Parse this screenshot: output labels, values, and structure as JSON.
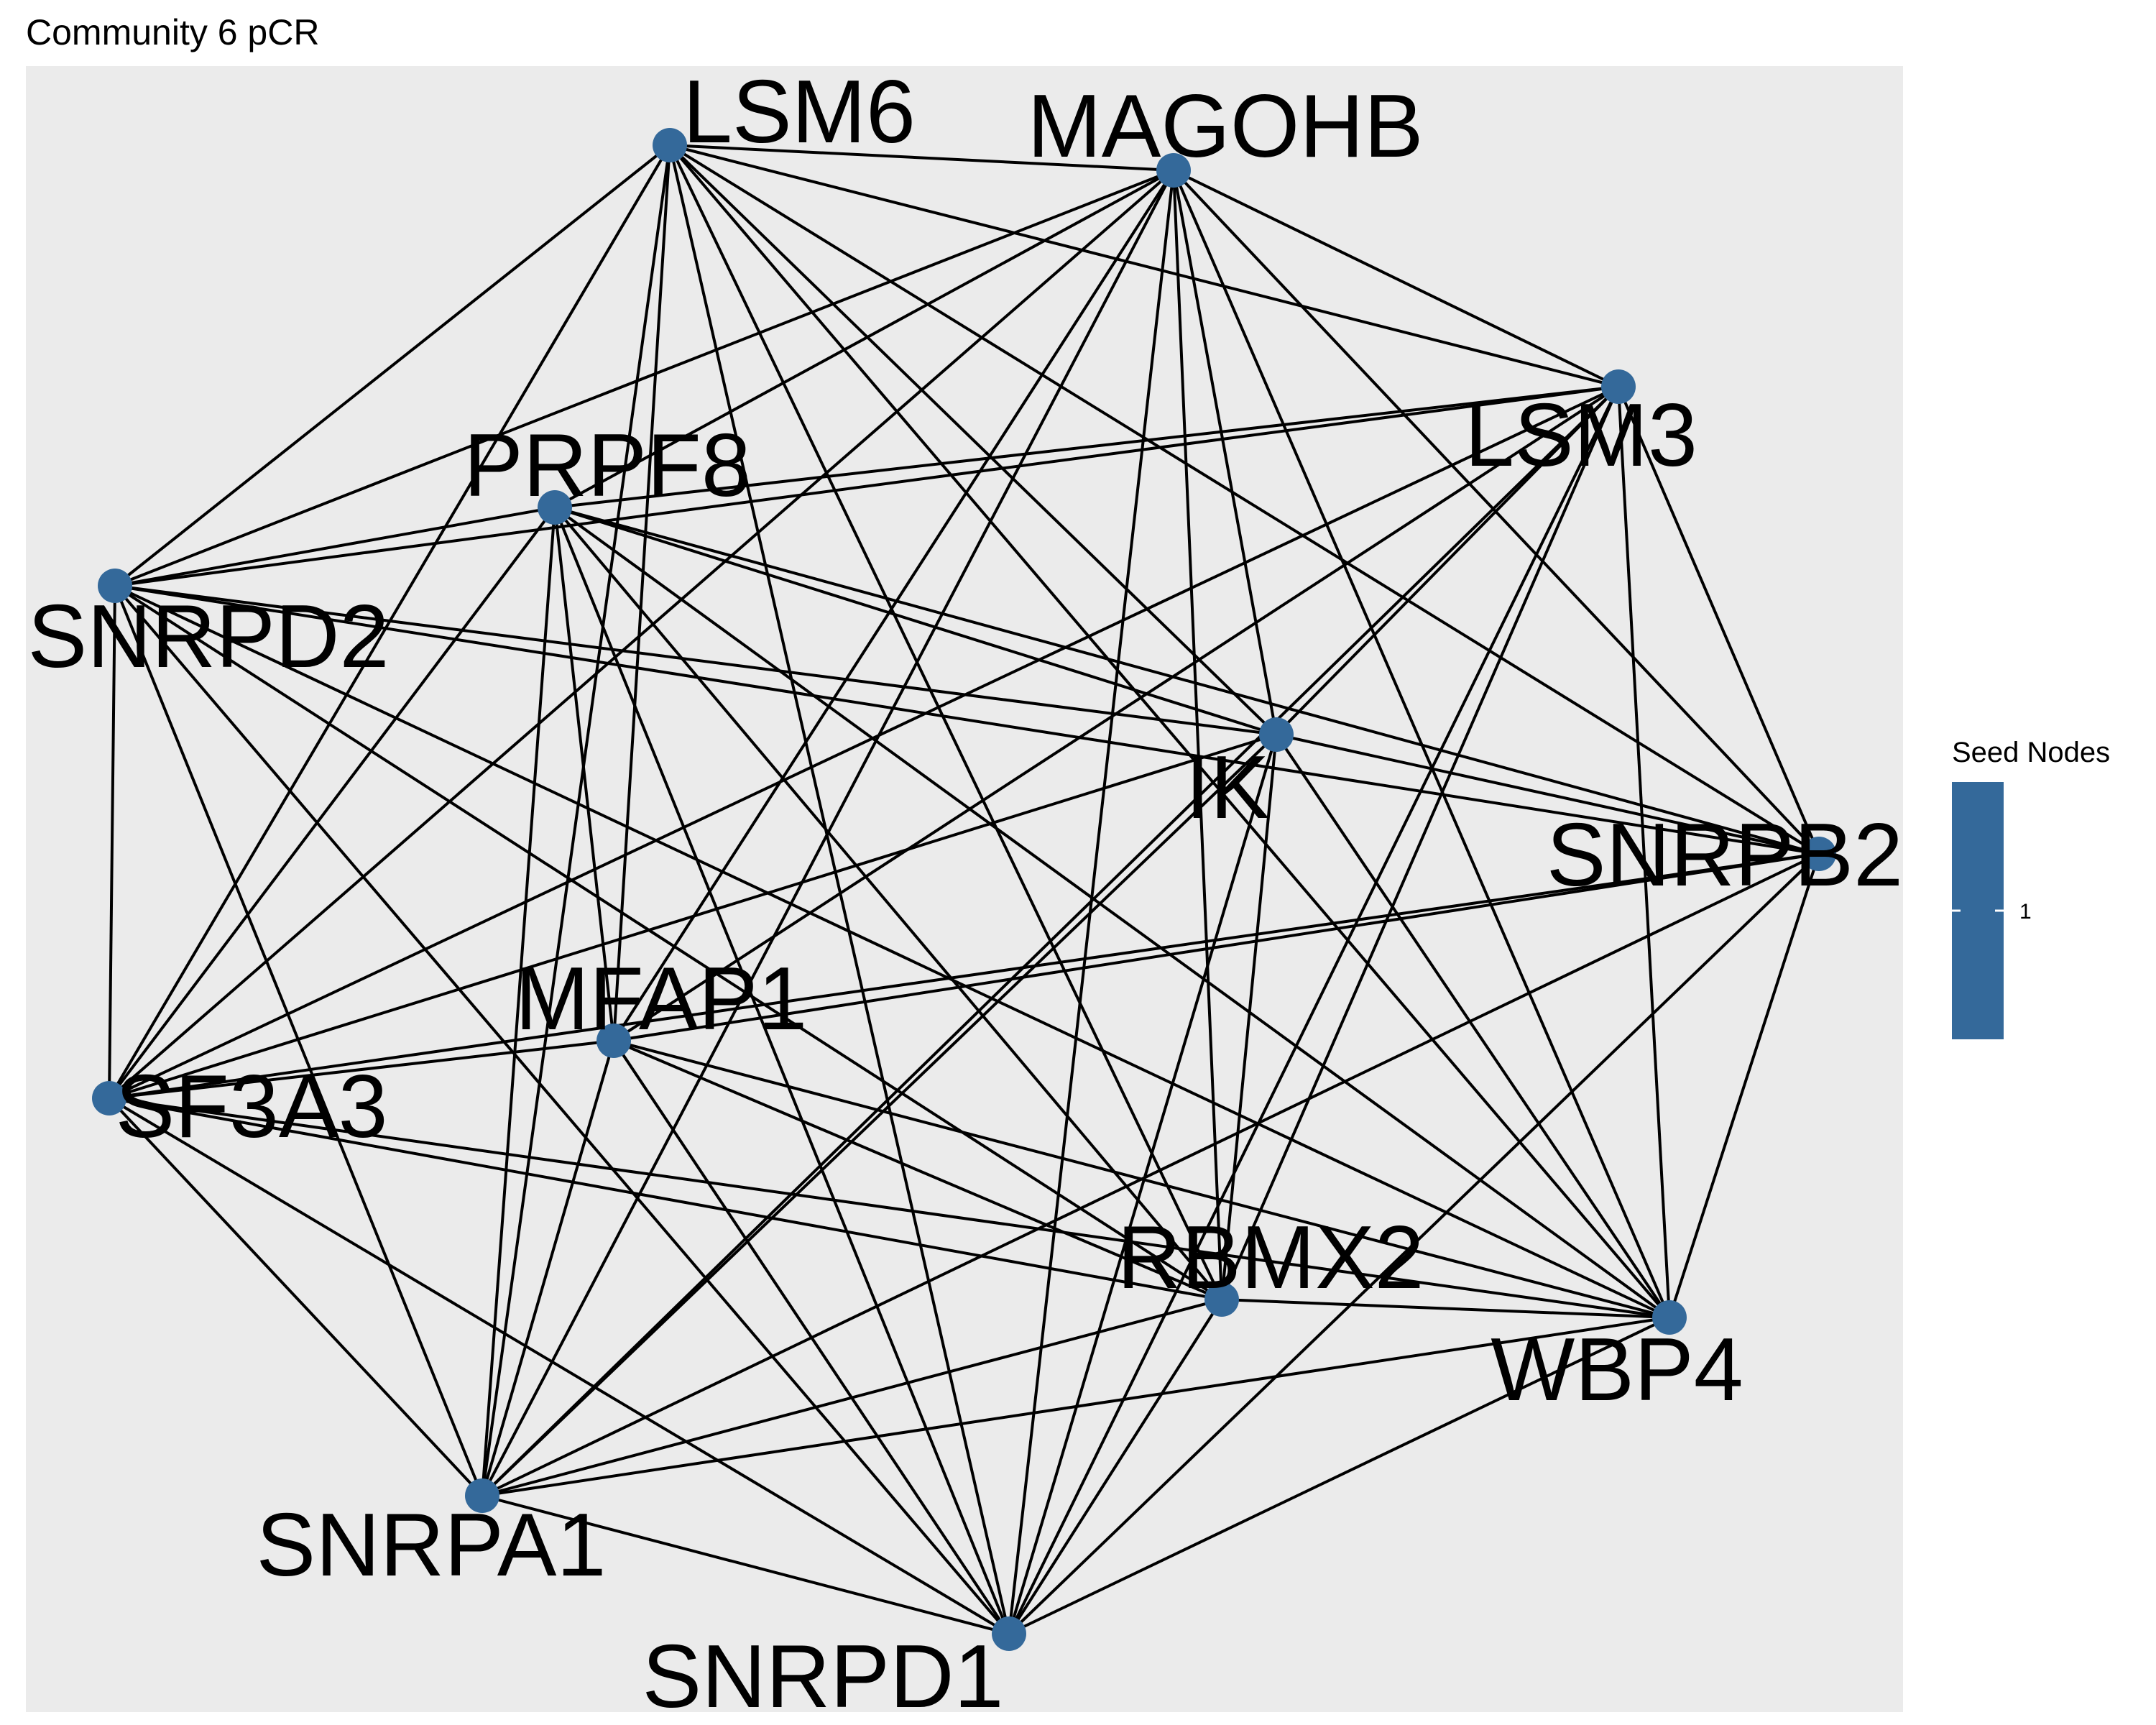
{
  "title": "Community 6 pCR",
  "node_color": "#34699a",
  "panel_color": "#ebebeb",
  "edge_color": "#000000",
  "legend": {
    "title": "Seed Nodes",
    "tick_label": "1",
    "color": "#34699a"
  },
  "nodes": [
    {
      "id": "LSM6",
      "label": "LSM6"
    },
    {
      "id": "MAGOHB",
      "label": "MAGOHB"
    },
    {
      "id": "LSM3",
      "label": "LSM3"
    },
    {
      "id": "PRPF8",
      "label": "PRPF8"
    },
    {
      "id": "SNRPD2",
      "label": "SNRPD2"
    },
    {
      "id": "IK",
      "label": "IK"
    },
    {
      "id": "SNRPB2",
      "label": "SNRPB2"
    },
    {
      "id": "MFAP1",
      "label": "MFAP1"
    },
    {
      "id": "SF3A3",
      "label": "SF3A3"
    },
    {
      "id": "RBMX2",
      "label": "RBMX2"
    },
    {
      "id": "WBP4",
      "label": "WBP4"
    },
    {
      "id": "SNRPA1",
      "label": "SNRPA1"
    },
    {
      "id": "SNRPD1",
      "label": "SNRPD1"
    }
  ],
  "edges": [
    [
      "LSM6",
      "MAGOHB"
    ],
    [
      "LSM6",
      "LSM3"
    ],
    [
      "LSM6",
      "SNRPD2"
    ],
    [
      "LSM6",
      "IK"
    ],
    [
      "LSM6",
      "SNRPB2"
    ],
    [
      "LSM6",
      "MFAP1"
    ],
    [
      "LSM6",
      "SF3A3"
    ],
    [
      "LSM6",
      "RBMX2"
    ],
    [
      "LSM6",
      "WBP4"
    ],
    [
      "LSM6",
      "SNRPA1"
    ],
    [
      "LSM6",
      "SNRPD1"
    ],
    [
      "MAGOHB",
      "LSM3"
    ],
    [
      "MAGOHB",
      "PRPF8"
    ],
    [
      "MAGOHB",
      "SNRPD2"
    ],
    [
      "MAGOHB",
      "IK"
    ],
    [
      "MAGOHB",
      "SNRPB2"
    ],
    [
      "MAGOHB",
      "MFAP1"
    ],
    [
      "MAGOHB",
      "SF3A3"
    ],
    [
      "MAGOHB",
      "RBMX2"
    ],
    [
      "MAGOHB",
      "WBP4"
    ],
    [
      "MAGOHB",
      "SNRPA1"
    ],
    [
      "MAGOHB",
      "SNRPD1"
    ],
    [
      "LSM3",
      "PRPF8"
    ],
    [
      "LSM3",
      "SNRPD2"
    ],
    [
      "LSM3",
      "IK"
    ],
    [
      "LSM3",
      "MFAP1"
    ],
    [
      "LSM3",
      "SF3A3"
    ],
    [
      "LSM3",
      "RBMX2"
    ],
    [
      "LSM3",
      "WBP4"
    ],
    [
      "LSM3",
      "SNRPA1"
    ],
    [
      "LSM3",
      "SNRPB2"
    ],
    [
      "LSM3",
      "SNRPD1"
    ],
    [
      "PRPF8",
      "SNRPD2"
    ],
    [
      "PRPF8",
      "IK"
    ],
    [
      "PRPF8",
      "SNRPB2"
    ],
    [
      "PRPF8",
      "MFAP1"
    ],
    [
      "PRPF8",
      "SF3A3"
    ],
    [
      "PRPF8",
      "RBMX2"
    ],
    [
      "PRPF8",
      "WBP4"
    ],
    [
      "PRPF8",
      "SNRPA1"
    ],
    [
      "PRPF8",
      "SNRPD1"
    ],
    [
      "SNRPD2",
      "IK"
    ],
    [
      "SNRPD2",
      "SNRPB2"
    ],
    [
      "SNRPD2",
      "SF3A3"
    ],
    [
      "SNRPD2",
      "RBMX2"
    ],
    [
      "SNRPD2",
      "WBP4"
    ],
    [
      "SNRPD2",
      "SNRPA1"
    ],
    [
      "SNRPD2",
      "SNRPD1"
    ],
    [
      "IK",
      "SNRPB2"
    ],
    [
      "IK",
      "SF3A3"
    ],
    [
      "IK",
      "RBMX2"
    ],
    [
      "IK",
      "WBP4"
    ],
    [
      "IK",
      "SNRPA1"
    ],
    [
      "IK",
      "SNRPD1"
    ],
    [
      "SNRPB2",
      "MFAP1"
    ],
    [
      "SNRPB2",
      "SF3A3"
    ],
    [
      "SNRPB2",
      "WBP4"
    ],
    [
      "SNRPB2",
      "SNRPA1"
    ],
    [
      "SNRPB2",
      "SNRPD1"
    ],
    [
      "MFAP1",
      "SF3A3"
    ],
    [
      "MFAP1",
      "RBMX2"
    ],
    [
      "MFAP1",
      "WBP4"
    ],
    [
      "MFAP1",
      "SNRPA1"
    ],
    [
      "MFAP1",
      "SNRPD1"
    ],
    [
      "SF3A3",
      "RBMX2"
    ],
    [
      "SF3A3",
      "WBP4"
    ],
    [
      "SF3A3",
      "SNRPA1"
    ],
    [
      "SF3A3",
      "SNRPD1"
    ],
    [
      "RBMX2",
      "WBP4"
    ],
    [
      "RBMX2",
      "SNRPA1"
    ],
    [
      "RBMX2",
      "SNRPD1"
    ],
    [
      "WBP4",
      "SNRPA1"
    ],
    [
      "WBP4",
      "SNRPD1"
    ],
    [
      "SNRPA1",
      "SNRPD1"
    ]
  ]
}
